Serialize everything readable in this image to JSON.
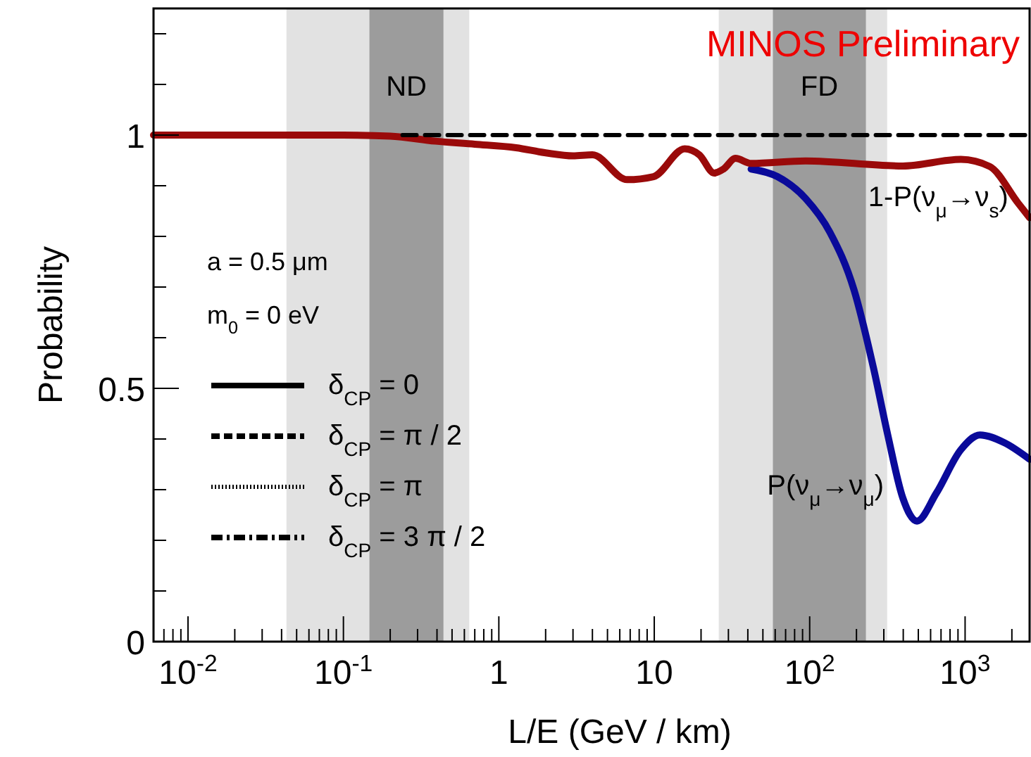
{
  "chart_data": {
    "type": "line",
    "ylabel": "Probability",
    "xlabel": "L/E (GeV / km)",
    "log": "x",
    "grid": false,
    "legend": false,
    "line_style": "solid",
    "marker": "none",
    "xlim": [
      0.006,
      2600
    ],
    "ylim": [
      0,
      1.25
    ],
    "xticks": [
      {
        "value": 0.007,
        "label": null
      },
      {
        "value": 0.008,
        "label": null
      },
      {
        "value": 0.009,
        "label": null
      },
      {
        "value": 0.01,
        "label": "10$^{-2}$"
      },
      {
        "value": 0.02,
        "label": null
      },
      {
        "value": 0.03,
        "label": null
      },
      {
        "value": 0.04,
        "label": null
      },
      {
        "value": 0.05,
        "label": null
      },
      {
        "value": 0.06,
        "label": null
      },
      {
        "value": 0.07,
        "label": null
      },
      {
        "value": 0.08,
        "label": null
      },
      {
        "value": 0.09,
        "label": null
      },
      {
        "value": 0.1,
        "label": "10$^{-1}$"
      },
      {
        "value": 0.2,
        "label": null
      },
      {
        "value": 0.3,
        "label": null
      },
      {
        "value": 0.4,
        "label": null
      },
      {
        "value": 0.5,
        "label": null
      },
      {
        "value": 0.6,
        "label": null
      },
      {
        "value": 0.7,
        "label": null
      },
      {
        "value": 0.8,
        "label": null
      },
      {
        "value": 0.9,
        "label": null
      },
      1,
      {
        "value": 2,
        "label": null
      },
      {
        "value": 3,
        "label": null
      },
      {
        "value": 4,
        "label": null
      },
      {
        "value": 5,
        "label": null
      },
      {
        "value": 6,
        "label": null
      },
      {
        "value": 7,
        "label": null
      },
      {
        "value": 8,
        "label": null
      },
      {
        "value": 9,
        "label": null
      },
      10,
      {
        "value": 20,
        "label": null
      },
      {
        "value": 30,
        "label": null
      },
      {
        "value": 40,
        "label": null
      },
      {
        "value": 50,
        "label": null
      },
      {
        "value": 60,
        "label": null
      },
      {
        "value": 70,
        "label": null
      },
      {
        "value": 80,
        "label": null
      },
      {
        "value": 90,
        "label": null
      },
      {
        "value": 100,
        "label": "10$^{2}$"
      },
      {
        "value": 200,
        "label": null
      },
      {
        "value": 300,
        "label": null
      },
      {
        "value": 400,
        "label": null
      },
      {
        "value": 500,
        "label": null
      },
      {
        "value": 600,
        "label": null
      },
      {
        "value": 700,
        "label": null
      },
      {
        "value": 800,
        "label": null
      },
      {
        "value": 900,
        "label": null
      },
      {
        "value": 1000,
        "label": "10$^{3}$"
      },
      {
        "value": 2000,
        "label": null
      }
    ],
    "yticks": [
      0,
      {
        "value": 0.1,
        "label": null
      },
      {
        "value": 0.2,
        "label": null
      },
      {
        "value": 0.3,
        "label": null
      },
      {
        "value": 0.4,
        "label": null
      },
      0.5,
      {
        "value": 0.6,
        "label": null
      },
      {
        "value": 0.7,
        "label": null
      },
      {
        "value": 0.8,
        "label": null
      },
      {
        "value": 0.9,
        "label": null
      },
      1,
      {
        "value": 1.1,
        "label": null
      },
      {
        "value": 1.2,
        "label": null
      }
    ],
    "bands": [
      {
        "axis": "x",
        "from": 0.043,
        "to": 0.645,
        "color": "#e2e2e2"
      },
      {
        "axis": "x",
        "from": 0.147,
        "to": 0.44,
        "label": "ND",
        "color": "#9c9c9c"
      },
      {
        "axis": "x",
        "from": 26,
        "to": 315,
        "color": "#e2e2e2"
      },
      {
        "axis": "x",
        "from": 58,
        "to": 230,
        "label": "FD",
        "color": "#9c9c9c"
      }
    ],
    "series": [
      {
        "name": "P(ν$_{μ}$→ν$_{μ}$)",
        "color": "#0a0a9a",
        "x": [
          42,
          62,
          94,
          135,
          193,
          257,
          318,
          398,
          490,
          653,
          940,
          1245,
          1780,
          2600
        ],
        "values": [
          0.933,
          0.918,
          0.875,
          0.808,
          0.694,
          0.541,
          0.408,
          0.283,
          0.238,
          0.293,
          0.379,
          0.408,
          0.393,
          0.36
        ]
      },
      {
        "name": "1-P(ν$_{μ}$→ν$_{s}$)",
        "color": "#9a0a0a",
        "x": [
          0.006,
          0.1,
          0.2,
          0.39,
          0.7,
          1.29,
          2,
          3,
          4,
          6.7,
          9.9,
          15.7,
          19.5,
          24.3,
          27.9,
          33.3,
          42,
          94,
          398,
          940,
          1440,
          2190,
          2600
        ],
        "values": [
          1,
          1,
          0.998,
          0.988,
          0.982,
          0.975,
          0.965,
          0.959,
          0.961,
          0.912,
          0.918,
          0.973,
          0.961,
          0.925,
          0.933,
          0.954,
          0.944,
          0.949,
          0.939,
          0.952,
          0.938,
          0.866,
          0.837
        ]
      },
      {
        "color": "#000000",
        "line_style": "dashed",
        "x": [
          0.24,
          2600
        ],
        "values": [
          1,
          1
        ]
      }
    ],
    "annotations": [
      "MINOS Preliminary",
      "a = 0.5 μm",
      "m$_{0}$ = 0 eV",
      "δ$_{CP}$ = 0",
      "δ$_{CP}$ = π / 2",
      "δ$_{CP}$ = π",
      "δ$_{CP}$ = 3 π / 2"
    ]
  }
}
